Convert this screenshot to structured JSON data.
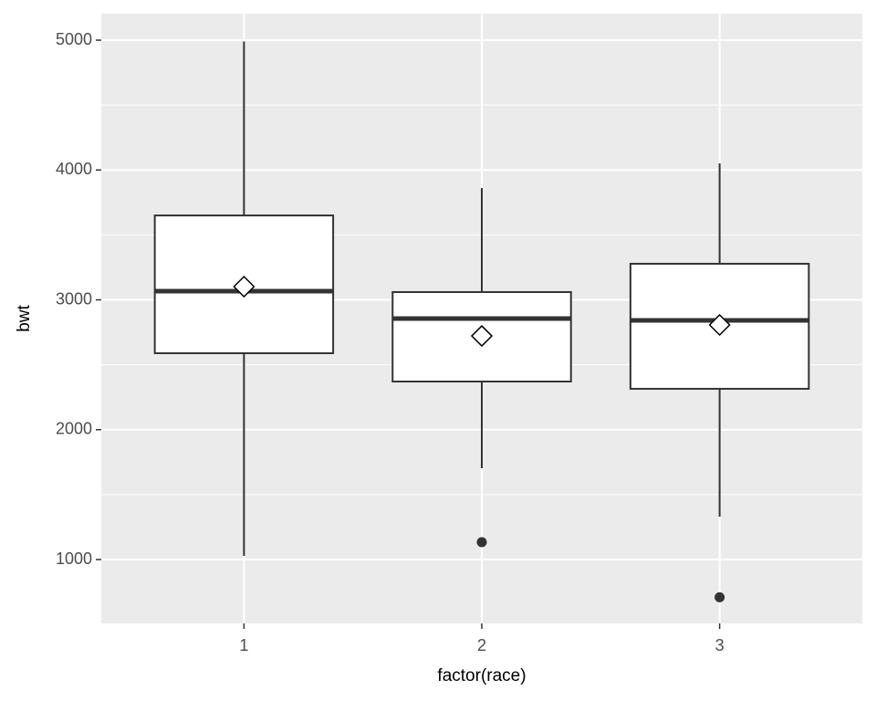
{
  "chart_data": {
    "type": "box",
    "x_label": "factor(race)",
    "y_label": "bwt",
    "categories": [
      "1",
      "2",
      "3"
    ],
    "boxes": [
      {
        "whisker_low": 1028,
        "q1": 2589,
        "median": 3067,
        "q3": 3650,
        "whisker_high": 4990,
        "mean": 3102,
        "outliers": []
      },
      {
        "whisker_low": 1703,
        "q1": 2371,
        "median": 2856,
        "q3": 3060,
        "whisker_high": 3861,
        "mean": 2722,
        "outliers": [
          1134
        ]
      },
      {
        "whisker_low": 1330,
        "q1": 2315,
        "median": 2842,
        "q3": 3278,
        "whisker_high": 4051,
        "mean": 2807,
        "outliers": [
          709
        ]
      }
    ],
    "ylim": [
      508,
      5204
    ],
    "yticks": [
      1000,
      2000,
      3000,
      4000,
      5000
    ],
    "grid": true
  }
}
